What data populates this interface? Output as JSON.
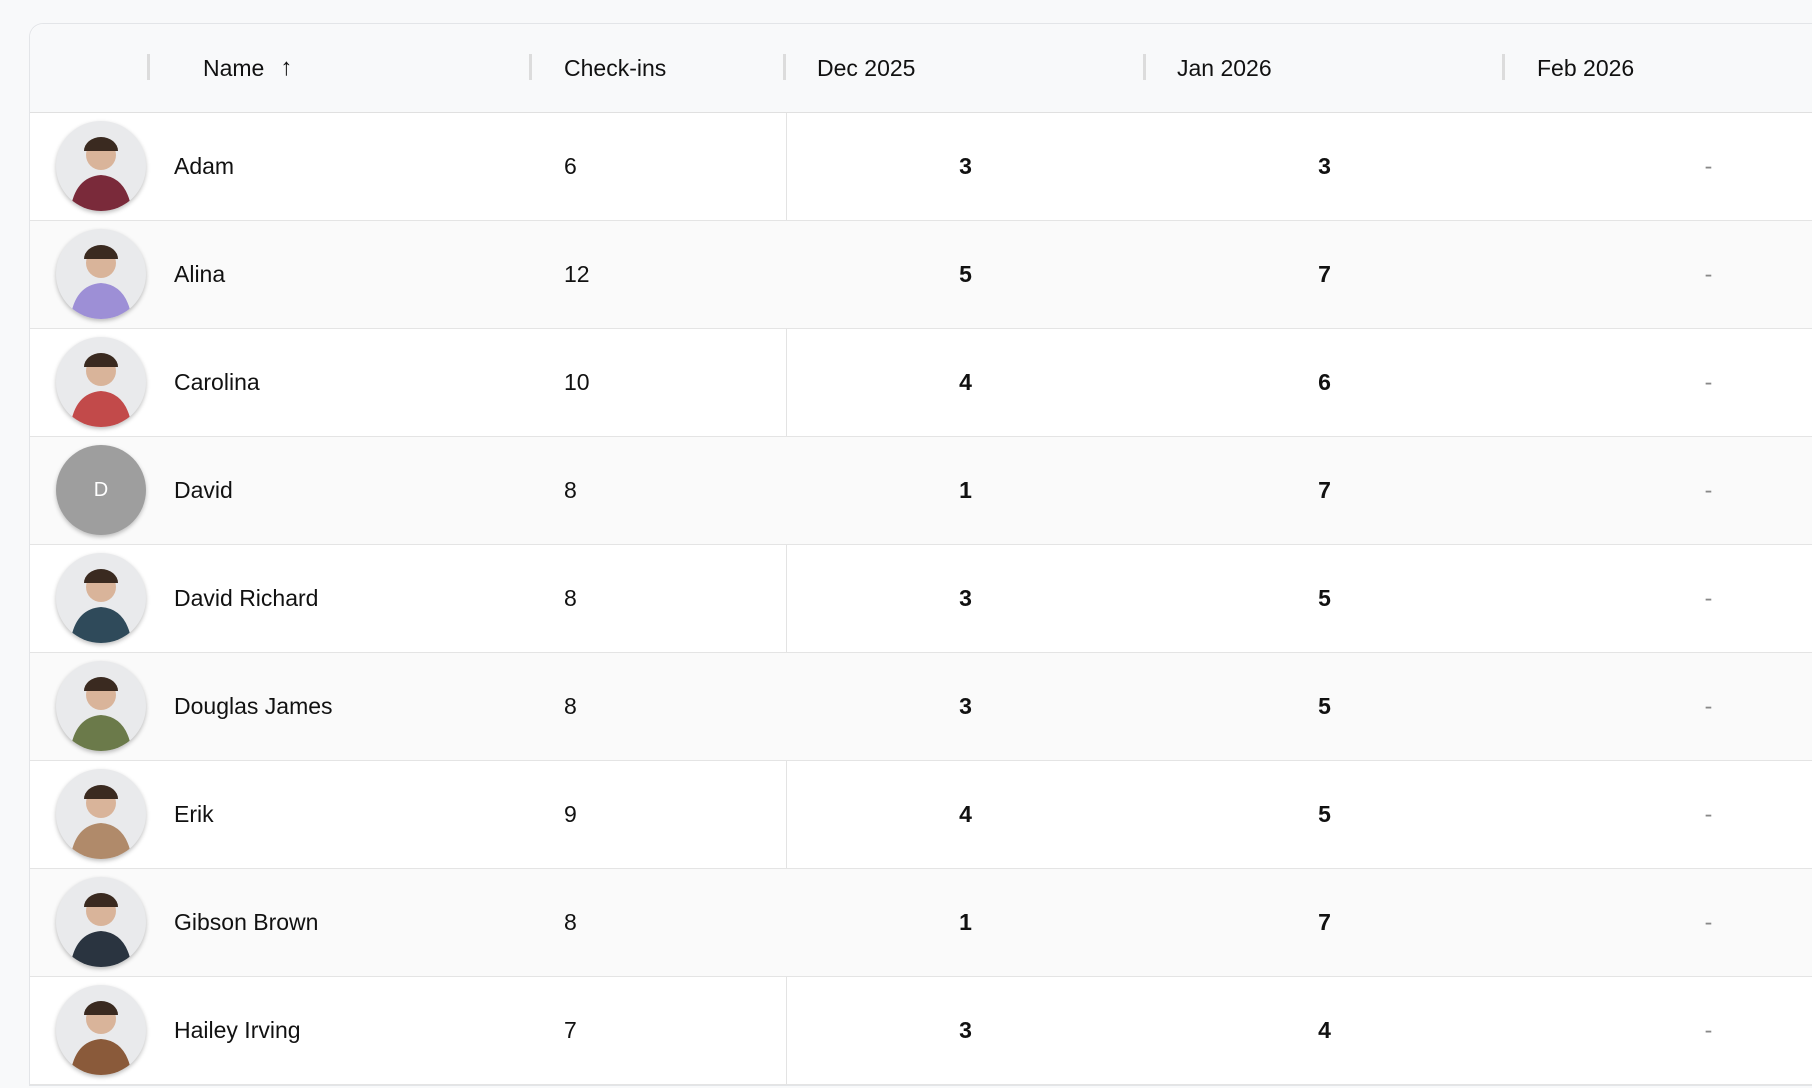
{
  "table": {
    "columns": {
      "name": "Name",
      "checkins": "Check-ins",
      "months": [
        "Dec 2025",
        "Jan 2026",
        "Feb 2026"
      ]
    },
    "sort": {
      "column": "Name",
      "direction": "ascending",
      "icon": "arrow-up-icon"
    },
    "empty_value": "-",
    "rows": [
      {
        "name": "Adam",
        "checkins": "6",
        "months": [
          "3",
          "3",
          "-"
        ],
        "avatar": {
          "type": "photo",
          "color": "#7a2a3a"
        }
      },
      {
        "name": "Alina",
        "checkins": "12",
        "months": [
          "5",
          "7",
          "-"
        ],
        "avatar": {
          "type": "photo",
          "color": "#9d8fd6"
        }
      },
      {
        "name": "Carolina",
        "checkins": "10",
        "months": [
          "4",
          "6",
          "-"
        ],
        "avatar": {
          "type": "photo",
          "color": "#c24a4a"
        }
      },
      {
        "name": "David",
        "checkins": "8",
        "months": [
          "1",
          "7",
          "-"
        ],
        "avatar": {
          "type": "initial",
          "initial": "D",
          "color": "#9e9e9e"
        }
      },
      {
        "name": "David Richard",
        "checkins": "8",
        "months": [
          "3",
          "5",
          "-"
        ],
        "avatar": {
          "type": "photo",
          "color": "#2f4a5a"
        }
      },
      {
        "name": "Douglas James",
        "checkins": "8",
        "months": [
          "3",
          "5",
          "-"
        ],
        "avatar": {
          "type": "photo",
          "color": "#6b7a4a"
        }
      },
      {
        "name": "Erik",
        "checkins": "9",
        "months": [
          "4",
          "5",
          "-"
        ],
        "avatar": {
          "type": "photo",
          "color": "#b08a6a"
        }
      },
      {
        "name": "Gibson Brown",
        "checkins": "8",
        "months": [
          "1",
          "7",
          "-"
        ],
        "avatar": {
          "type": "photo",
          "color": "#2a3440"
        }
      },
      {
        "name": "Hailey Irving",
        "checkins": "7",
        "months": [
          "3",
          "4",
          "-"
        ],
        "avatar": {
          "type": "photo",
          "color": "#8a5a3a"
        }
      }
    ]
  }
}
